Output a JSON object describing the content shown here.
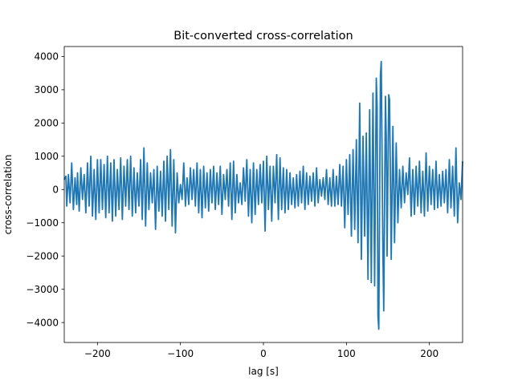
{
  "chart_data": {
    "type": "line",
    "title": "Bit-converted cross-correlation",
    "xlabel": "lag [s]",
    "ylabel": "cross-correlation",
    "xlim": [
      -240,
      240
    ],
    "ylim": [
      -4600,
      4300
    ],
    "xticks": [
      {
        "value": -200,
        "label": "−200"
      },
      {
        "value": -100,
        "label": "−100"
      },
      {
        "value": 0,
        "label": "0"
      },
      {
        "value": 100,
        "label": "100"
      },
      {
        "value": 200,
        "label": "200"
      }
    ],
    "yticks": [
      {
        "value": -4000,
        "label": "−4000"
      },
      {
        "value": -3000,
        "label": "−3000"
      },
      {
        "value": -2000,
        "label": "−2000"
      },
      {
        "value": -1000,
        "label": "−1000"
      },
      {
        "value": 0,
        "label": "0"
      },
      {
        "value": 1000,
        "label": "1000"
      },
      {
        "value": 2000,
        "label": "2000"
      },
      {
        "value": 3000,
        "label": "3000"
      },
      {
        "value": 4000,
        "label": "4000"
      }
    ],
    "grid": false,
    "color": "#1f77b4",
    "series": [
      {
        "values": [
          [
            -240,
            300
          ],
          [
            -238,
            400
          ],
          [
            -237,
            -500
          ],
          [
            -235,
            450
          ],
          [
            -233,
            -400
          ],
          [
            -231,
            800
          ],
          [
            -229,
            -600
          ],
          [
            -227,
            350
          ],
          [
            -225,
            -450
          ],
          [
            -224,
            500
          ],
          [
            -222,
            -650
          ],
          [
            -220,
            650
          ],
          [
            -218,
            -300
          ],
          [
            -216,
            450
          ],
          [
            -214,
            -700
          ],
          [
            -212,
            800
          ],
          [
            -210,
            -500
          ],
          [
            -208,
            1000
          ],
          [
            -206,
            -800
          ],
          [
            -204,
            600
          ],
          [
            -202,
            -900
          ],
          [
            -200,
            900
          ],
          [
            -198,
            -700
          ],
          [
            -196,
            900
          ],
          [
            -194,
            -600
          ],
          [
            -192,
            750
          ],
          [
            -190,
            -850
          ],
          [
            -188,
            1000
          ],
          [
            -186,
            -700
          ],
          [
            -184,
            800
          ],
          [
            -182,
            -950
          ],
          [
            -180,
            900
          ],
          [
            -178,
            -800
          ],
          [
            -176,
            600
          ],
          [
            -174,
            -600
          ],
          [
            -172,
            950
          ],
          [
            -170,
            -900
          ],
          [
            -168,
            700
          ],
          [
            -166,
            -500
          ],
          [
            -164,
            900
          ],
          [
            -162,
            -600
          ],
          [
            -160,
            1000
          ],
          [
            -158,
            -800
          ],
          [
            -156,
            650
          ],
          [
            -154,
            -700
          ],
          [
            -152,
            500
          ],
          [
            -150,
            -500
          ],
          [
            -148,
            900
          ],
          [
            -146,
            -900
          ],
          [
            -144,
            1250
          ],
          [
            -142,
            -1100
          ],
          [
            -140,
            800
          ],
          [
            -138,
            -600
          ],
          [
            -136,
            500
          ],
          [
            -134,
            -400
          ],
          [
            -132,
            600
          ],
          [
            -130,
            -1200
          ],
          [
            -128,
            700
          ],
          [
            -126,
            -650
          ],
          [
            -124,
            550
          ],
          [
            -122,
            -800
          ],
          [
            -120,
            850
          ],
          [
            -118,
            -950
          ],
          [
            -116,
            1000
          ],
          [
            -114,
            -600
          ],
          [
            -112,
            1200
          ],
          [
            -110,
            -1100
          ],
          [
            -108,
            900
          ],
          [
            -106,
            -1300
          ],
          [
            -104,
            500
          ],
          [
            -102,
            -400
          ],
          [
            -100,
            150
          ],
          [
            -98,
            -300
          ],
          [
            -96,
            800
          ],
          [
            -94,
            -500
          ],
          [
            -92,
            350
          ],
          [
            -90,
            -450
          ],
          [
            -88,
            650
          ],
          [
            -86,
            -300
          ],
          [
            -84,
            600
          ],
          [
            -82,
            -500
          ],
          [
            -80,
            800
          ],
          [
            -78,
            -700
          ],
          [
            -76,
            600
          ],
          [
            -74,
            -850
          ],
          [
            -72,
            700
          ],
          [
            -70,
            -550
          ],
          [
            -68,
            500
          ],
          [
            -66,
            -650
          ],
          [
            -64,
            600
          ],
          [
            -62,
            -400
          ],
          [
            -60,
            700
          ],
          [
            -58,
            -600
          ],
          [
            -56,
            500
          ],
          [
            -54,
            -450
          ],
          [
            -52,
            700
          ],
          [
            -50,
            -750
          ],
          [
            -48,
            450
          ],
          [
            -46,
            -300
          ],
          [
            -44,
            600
          ],
          [
            -42,
            -500
          ],
          [
            -40,
            800
          ],
          [
            -38,
            -900
          ],
          [
            -36,
            850
          ],
          [
            -34,
            -700
          ],
          [
            -32,
            450
          ],
          [
            -30,
            -400
          ],
          [
            -28,
            200
          ],
          [
            -26,
            -450
          ],
          [
            -24,
            650
          ],
          [
            -22,
            -350
          ],
          [
            -20,
            900
          ],
          [
            -18,
            -800
          ],
          [
            -16,
            600
          ],
          [
            -14,
            -1000
          ],
          [
            -12,
            800
          ],
          [
            -10,
            -750
          ],
          [
            -8,
            600
          ],
          [
            -6,
            -450
          ],
          [
            -4,
            750
          ],
          [
            -2,
            -400
          ],
          [
            0,
            850
          ],
          [
            2,
            -1250
          ],
          [
            4,
            1000
          ],
          [
            6,
            -600
          ],
          [
            8,
            700
          ],
          [
            10,
            -950
          ],
          [
            12,
            700
          ],
          [
            14,
            -400
          ],
          [
            16,
            1050
          ],
          [
            18,
            -900
          ],
          [
            20,
            950
          ],
          [
            22,
            -600
          ],
          [
            24,
            650
          ],
          [
            26,
            -700
          ],
          [
            28,
            600
          ],
          [
            30,
            -600
          ],
          [
            32,
            500
          ],
          [
            34,
            -450
          ],
          [
            36,
            350
          ],
          [
            38,
            -550
          ],
          [
            40,
            450
          ],
          [
            42,
            -500
          ],
          [
            44,
            550
          ],
          [
            46,
            -400
          ],
          [
            48,
            700
          ],
          [
            50,
            -600
          ],
          [
            52,
            500
          ],
          [
            54,
            -450
          ],
          [
            56,
            400
          ],
          [
            58,
            -350
          ],
          [
            60,
            500
          ],
          [
            62,
            -500
          ],
          [
            64,
            650
          ],
          [
            66,
            -400
          ],
          [
            68,
            300
          ],
          [
            70,
            -200
          ],
          [
            72,
            350
          ],
          [
            74,
            -300
          ],
          [
            76,
            600
          ],
          [
            78,
            -450
          ],
          [
            80,
            350
          ],
          [
            82,
            -500
          ],
          [
            84,
            600
          ],
          [
            86,
            -500
          ],
          [
            88,
            400
          ],
          [
            90,
            -450
          ],
          [
            92,
            750
          ],
          [
            94,
            -500
          ],
          [
            96,
            700
          ],
          [
            98,
            -1150
          ],
          [
            100,
            900
          ],
          [
            102,
            -750
          ],
          [
            104,
            1050
          ],
          [
            106,
            -1400
          ],
          [
            108,
            1200
          ],
          [
            110,
            -1200
          ],
          [
            112,
            1500
          ],
          [
            114,
            -1600
          ],
          [
            116,
            2600
          ],
          [
            118,
            -2100
          ],
          [
            120,
            1600
          ],
          [
            122,
            -1400
          ],
          [
            124,
            1700
          ],
          [
            126,
            -2700
          ],
          [
            128,
            2400
          ],
          [
            130,
            -2800
          ],
          [
            132,
            2900
          ],
          [
            134,
            -2900
          ],
          [
            136,
            3350
          ],
          [
            137,
            2500
          ],
          [
            138,
            -3800
          ],
          [
            139,
            -4200
          ],
          [
            141,
            3450
          ],
          [
            142,
            3850
          ],
          [
            144,
            -2000
          ],
          [
            145,
            -3650
          ],
          [
            147,
            2800
          ],
          [
            148,
            1600
          ],
          [
            149,
            -2000
          ],
          [
            151,
            2850
          ],
          [
            152,
            2700
          ],
          [
            154,
            -2100
          ],
          [
            156,
            1900
          ],
          [
            158,
            -1600
          ],
          [
            160,
            1400
          ],
          [
            162,
            -1000
          ],
          [
            164,
            600
          ],
          [
            166,
            -550
          ],
          [
            168,
            700
          ],
          [
            170,
            -400
          ],
          [
            172,
            500
          ],
          [
            174,
            -150
          ],
          [
            176,
            950
          ],
          [
            178,
            -800
          ],
          [
            180,
            600
          ],
          [
            182,
            -750
          ],
          [
            184,
            700
          ],
          [
            186,
            -500
          ],
          [
            188,
            850
          ],
          [
            190,
            -700
          ],
          [
            192,
            550
          ],
          [
            194,
            -800
          ],
          [
            196,
            1100
          ],
          [
            198,
            -650
          ],
          [
            200,
            700
          ],
          [
            202,
            -450
          ],
          [
            204,
            600
          ],
          [
            206,
            -600
          ],
          [
            208,
            850
          ],
          [
            210,
            -550
          ],
          [
            212,
            450
          ],
          [
            214,
            -500
          ],
          [
            216,
            550
          ],
          [
            218,
            -400
          ],
          [
            220,
            600
          ],
          [
            222,
            -700
          ],
          [
            224,
            900
          ],
          [
            226,
            -550
          ],
          [
            228,
            700
          ],
          [
            230,
            -800
          ],
          [
            232,
            1250
          ],
          [
            234,
            -1000
          ],
          [
            236,
            200
          ],
          [
            238,
            -300
          ],
          [
            240,
            850
          ]
        ]
      }
    ]
  }
}
